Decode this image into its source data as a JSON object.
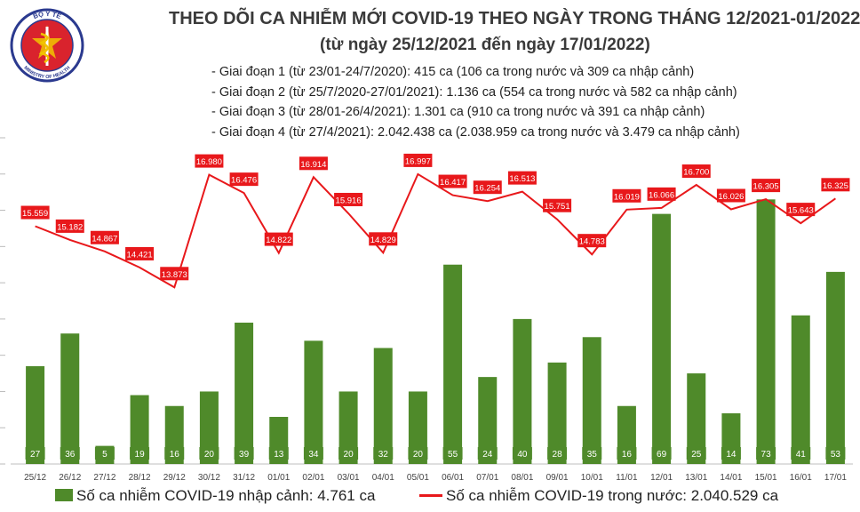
{
  "title": "THEO DÕI CA NHIỄM MỚI COVID-19 THEO NGÀY TRONG THÁNG 12/2021-01/2022",
  "subtitle": "(từ ngày 25/12/2021 đến ngày 17/01/2022)",
  "logo": {
    "text_top": "BỘ Y TẾ",
    "text_bottom": "MINISTRY OF HEALTH",
    "colors": {
      "ring": "#2b3a8f",
      "fill": "#d9232d",
      "snake": "#f1c400"
    }
  },
  "phases": [
    "- Giai đoạn 1 (từ 23/01-24/7/2020): 415 ca (106 ca trong nước và 309 ca nhập cảnh)",
    "- Giai đoạn 2 (từ 25/7/2020-27/01/2021): 1.136 ca (554 ca trong nước và 582 ca nhập cảnh)",
    "- Giai đoạn 3 (từ 28/01-26/4/2021): 1.301 ca (910 ca trong nước và 391 ca nhập cảnh)",
    "- Giai đoạn 4 (từ 27/4/2021): 2.042.438 ca (2.038.959 ca trong nước và 3.479 ca nhập cảnh)"
  ],
  "legend": {
    "bar": "Số ca nhiễm COVID-19 nhập cảnh: 4.761 ca",
    "line": "Số ca nhiễm COVID-19 trong nước: 2.040.529 ca"
  },
  "colors": {
    "bar": "#4f8a2a",
    "line": "#e8181b",
    "label_bg": "#e8181b",
    "label_text": "#ffffff",
    "bar_label_bg": "#4f8a2a",
    "title": "#3a3a3a"
  },
  "chart_data": {
    "type": "bar",
    "categories": [
      "25/12",
      "26/12",
      "27/12",
      "28/12",
      "29/12",
      "30/12",
      "31/12",
      "01/01",
      "02/01",
      "03/01",
      "04/01",
      "05/01",
      "06/01",
      "07/01",
      "08/01",
      "09/01",
      "10/01",
      "11/01",
      "12/01",
      "13/01",
      "14/01",
      "15/01",
      "16/01",
      "17/01"
    ],
    "series": [
      {
        "name": "Số ca nhiễm COVID-19 nhập cảnh",
        "type": "bar",
        "values": [
          27,
          36,
          5,
          19,
          16,
          20,
          39,
          13,
          34,
          20,
          32,
          20,
          55,
          24,
          40,
          28,
          35,
          16,
          69,
          25,
          14,
          73,
          41,
          53
        ]
      },
      {
        "name": "Số ca nhiễm COVID-19 trong nước",
        "type": "line",
        "values": [
          15559,
          15182,
          14867,
          14421,
          13873,
          16980,
          16476,
          14822,
          16914,
          15916,
          14829,
          16997,
          16417,
          16254,
          16513,
          15751,
          14783,
          16019,
          16066,
          16700,
          16026,
          16305,
          15643,
          16325
        ],
        "labels": [
          "15.559",
          "15.182",
          "14.867",
          "14.421",
          "13.873",
          "16.980",
          "16.476",
          "14.822",
          "16.914",
          "15.916",
          "14.829",
          "16.997",
          "16.417",
          "16.254",
          "16.513",
          "15.751",
          "14.783",
          "16.019",
          "16.066",
          "16.700",
          "16.026",
          "16.305",
          "15.643",
          "16.325"
        ]
      }
    ],
    "bar_ylim": [
      0,
      90
    ],
    "line_ylim": [
      9000,
      18000
    ],
    "grid": false,
    "legend_position": "bottom"
  }
}
